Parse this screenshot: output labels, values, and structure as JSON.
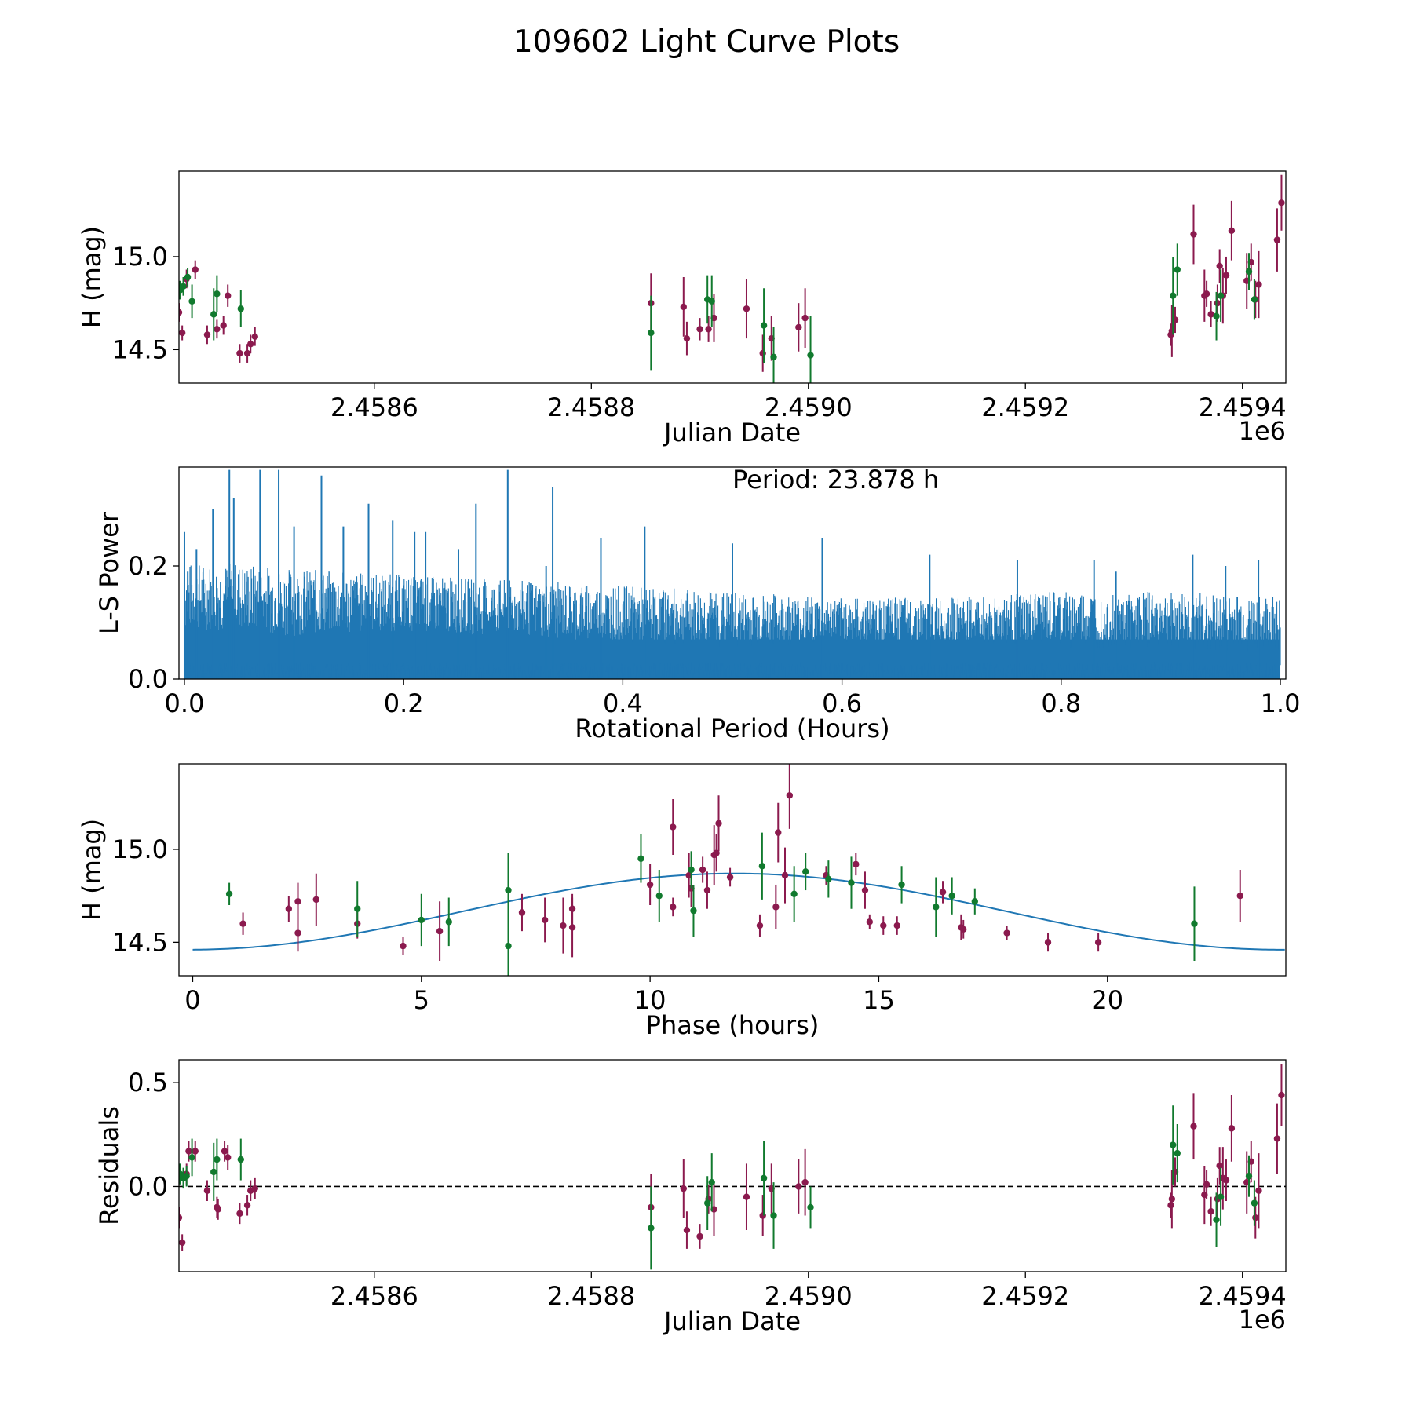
{
  "figure": {
    "title": "109602 Light Curve Plots"
  },
  "colors": {
    "red": "#8b1a4e",
    "green": "#117a2e",
    "blue": "#1f77b4"
  },
  "chart_data": [
    {
      "id": "lightcurve",
      "type": "scatter",
      "xlabel": "Julian Date",
      "ylabel": "H (mag)",
      "x_offset_label": "1e6",
      "xlim": [
        2.45842,
        2.45944
      ],
      "ylim": [
        14.32,
        15.46
      ],
      "y_inverted": true,
      "xticks": [
        2.4586,
        2.4588,
        2.459,
        2.4592,
        2.4594
      ],
      "xtick_labels": [
        "2.4586",
        "2.4588",
        "2.4590",
        "2.4592",
        "2.4594"
      ],
      "yticks": [
        14.5,
        15.0
      ],
      "ytick_labels": [
        "14.5",
        "15.0"
      ],
      "series": [
        {
          "name": "red-filter",
          "color": "red",
          "x": [
            2.45842,
            2.458423,
            2.458427,
            2.458435,
            2.458446,
            2.458455,
            2.458461,
            2.458465,
            2.458476,
            2.458483,
            2.458486,
            2.45849,
            2.458855,
            2.458885,
            2.458888,
            2.4589,
            2.458908,
            2.458913,
            2.458943,
            2.458958,
            2.458966,
            2.458991,
            2.458997,
            2.459334,
            2.459335,
            2.459338,
            2.459355,
            2.459365,
            2.459367,
            2.459371,
            2.459377,
            2.459379,
            2.459382,
            2.459385,
            2.45939,
            2.459404,
            2.459408,
            2.459412,
            2.459415,
            2.459432,
            2.459436,
            2.459443
          ],
          "y": [
            14.7,
            14.59,
            14.88,
            14.93,
            14.58,
            14.61,
            14.63,
            14.79,
            14.48,
            14.48,
            14.53,
            14.57,
            14.75,
            14.73,
            14.56,
            14.61,
            14.61,
            14.67,
            14.72,
            14.48,
            14.56,
            14.62,
            14.67,
            14.58,
            14.6,
            14.66,
            15.12,
            14.79,
            14.8,
            14.69,
            14.75,
            14.95,
            14.79,
            14.9,
            15.14,
            14.87,
            14.97,
            14.77,
            14.85,
            15.09,
            15.29,
            14.78
          ],
          "err": [
            0.05,
            0.04,
            0.05,
            0.05,
            0.05,
            0.05,
            0.05,
            0.06,
            0.05,
            0.05,
            0.05,
            0.05,
            0.16,
            0.16,
            0.09,
            0.06,
            0.07,
            0.13,
            0.16,
            0.1,
            0.12,
            0.13,
            0.16,
            0.06,
            0.14,
            0.07,
            0.16,
            0.14,
            0.07,
            0.07,
            0.1,
            0.09,
            0.15,
            0.1,
            0.16,
            0.15,
            0.1,
            0.1,
            0.18,
            0.17,
            0.15,
            0.18
          ]
        },
        {
          "name": "green-filter",
          "color": "green",
          "x": [
            2.458421,
            2.458424,
            2.458428,
            2.458432,
            2.458452,
            2.458455,
            2.458477,
            2.458855,
            2.458907,
            2.458911,
            2.458959,
            2.458968,
            2.459002,
            2.459336,
            2.45934,
            2.459376,
            2.45938,
            2.459406,
            2.459411
          ],
          "y": [
            14.82,
            14.84,
            14.89,
            14.76,
            14.69,
            14.8,
            14.72,
            14.59,
            14.77,
            14.76,
            14.63,
            14.46,
            14.47,
            14.79,
            14.93,
            14.68,
            14.79,
            14.92,
            14.77
          ]
        }
      ],
      "err_green": [
        0.05,
        0.05,
        0.05,
        0.09,
        0.14,
        0.1,
        0.1,
        0.2,
        0.13,
        0.14,
        0.2,
        0.16,
        0.21,
        0.21,
        0.14,
        0.13,
        0.14,
        0.1,
        0.11
      ]
    },
    {
      "id": "periodogram",
      "type": "line",
      "xlabel": "Rotational Period (Hours)",
      "ylabel": "L-S Power",
      "annotation": "Period: 23.878 h",
      "xlim": [
        -0.005,
        1.005
      ],
      "ylim": [
        0,
        0.375
      ],
      "xticks": [
        0.0,
        0.2,
        0.4,
        0.6,
        0.8,
        1.0
      ],
      "xtick_labels": [
        "0.0",
        "0.2",
        "0.4",
        "0.6",
        "0.8",
        "1.0"
      ],
      "yticks": [
        0.0,
        0.2
      ],
      "ytick_labels": [
        "0.0",
        "0.2"
      ],
      "series": [
        {
          "name": "ls-power",
          "color": "blue",
          "envelope": {
            "x": [
              0.0,
              0.05,
              0.1,
              0.2,
              0.3,
              0.4,
              0.5,
              0.6,
              0.7,
              0.8,
              0.9,
              1.0
            ],
            "baseline": [
              0.14,
              0.14,
              0.13,
              0.13,
              0.12,
              0.11,
              0.1,
              0.1,
              0.1,
              0.1,
              0.1,
              0.09
            ],
            "amplitude": [
              0.06,
              0.06,
              0.06,
              0.05,
              0.05,
              0.05,
              0.05,
              0.04,
              0.04,
              0.05,
              0.05,
              0.05
            ]
          },
          "peaks": {
            "x": [
              0.0,
              0.003,
              0.011,
              0.026,
              0.041,
              0.045,
              0.069,
              0.086,
              0.1,
              0.125,
              0.145,
              0.168,
              0.19,
              0.21,
              0.22,
              0.25,
              0.266,
              0.295,
              0.33,
              0.336,
              0.38,
              0.42,
              0.5,
              0.582,
              0.68,
              0.76,
              0.83,
              0.85,
              0.92,
              0.95,
              0.98
            ],
            "y": [
              0.26,
              0.19,
              0.23,
              0.3,
              0.37,
              0.32,
              0.37,
              0.37,
              0.27,
              0.36,
              0.27,
              0.31,
              0.28,
              0.26,
              0.26,
              0.23,
              0.31,
              0.37,
              0.2,
              0.34,
              0.25,
              0.27,
              0.24,
              0.25,
              0.22,
              0.21,
              0.21,
              0.19,
              0.22,
              0.2,
              0.21
            ]
          }
        }
      ]
    },
    {
      "id": "phased",
      "type": "scatter",
      "xlabel": "Phase (hours)",
      "ylabel": "H (mag)",
      "xlim": [
        -0.3,
        23.9
      ],
      "ylim": [
        14.32,
        15.46
      ],
      "y_inverted": true,
      "xticks": [
        0,
        5,
        10,
        15,
        20
      ],
      "xtick_labels": [
        "0",
        "5",
        "10",
        "15",
        "20"
      ],
      "yticks": [
        14.5,
        15.0
      ],
      "ytick_labels": [
        "14.5",
        "15.0"
      ],
      "model": {
        "name": "sinusoid-fit",
        "color": "blue",
        "mean": 14.665,
        "amplitude": 0.205,
        "phase_of_max": 11.85,
        "period": 23.878
      },
      "series": [
        {
          "name": "red-filter",
          "color": "red",
          "x": [
            1.1,
            2.1,
            2.3,
            2.3,
            2.7,
            3.6,
            4.6,
            5.4,
            7.2,
            7.7,
            8.1,
            8.3,
            8.3,
            10.0,
            10.5,
            10.5,
            10.85,
            10.9,
            11.15,
            11.25,
            11.4,
            11.45,
            11.5,
            11.75,
            12.4,
            12.75,
            12.8,
            12.95,
            13.05,
            13.85,
            14.5,
            14.7,
            14.8,
            15.1,
            15.4,
            16.4,
            16.8,
            16.85,
            17.8,
            18.7,
            19.8,
            22.9
          ],
          "y": [
            14.6,
            14.68,
            14.55,
            14.72,
            14.73,
            14.6,
            14.48,
            14.56,
            14.66,
            14.62,
            14.59,
            14.58,
            14.68,
            14.81,
            14.69,
            15.12,
            14.86,
            14.79,
            14.89,
            14.78,
            14.97,
            14.98,
            15.14,
            14.85,
            14.59,
            14.69,
            15.09,
            14.86,
            15.29,
            14.86,
            14.92,
            14.78,
            14.61,
            14.59,
            14.59,
            14.77,
            14.58,
            14.57,
            14.55,
            14.5,
            14.5,
            14.75
          ],
          "err": [
            0.06,
            0.07,
            0.1,
            0.1,
            0.14,
            0.08,
            0.05,
            0.16,
            0.1,
            0.12,
            0.15,
            0.16,
            0.08,
            0.11,
            0.05,
            0.15,
            0.12,
            0.1,
            0.07,
            0.1,
            0.16,
            0.1,
            0.15,
            0.05,
            0.06,
            0.12,
            0.16,
            0.15,
            0.18,
            0.05,
            0.06,
            0.1,
            0.04,
            0.05,
            0.05,
            0.06,
            0.07,
            0.05,
            0.04,
            0.05,
            0.05,
            0.14
          ]
        },
        {
          "name": "green-filter",
          "color": "green",
          "x": [
            0.8,
            3.6,
            5.0,
            5.6,
            6.9,
            6.9,
            9.8,
            10.2,
            10.9,
            10.95,
            12.45,
            13.15,
            13.4,
            13.9,
            14.4,
            15.5,
            16.25,
            16.6,
            17.1,
            21.9
          ],
          "y": [
            14.76,
            14.68,
            14.62,
            14.61,
            14.78,
            14.48,
            14.95,
            14.75,
            14.89,
            14.67,
            14.91,
            14.76,
            14.88,
            14.84,
            14.82,
            14.81,
            14.69,
            14.75,
            14.72,
            14.6
          ]
        }
      ],
      "err_green": [
        0.06,
        0.15,
        0.14,
        0.13,
        0.2,
        0.21,
        0.13,
        0.14,
        0.1,
        0.14,
        0.18,
        0.15,
        0.1,
        0.1,
        0.14,
        0.1,
        0.16,
        0.1,
        0.07,
        0.2
      ]
    },
    {
      "id": "residuals",
      "type": "scatter",
      "xlabel": "Julian Date",
      "ylabel": "Residuals",
      "x_offset_label": "1e6",
      "xlim": [
        2.45842,
        2.45944
      ],
      "ylim": [
        -0.41,
        0.61
      ],
      "xticks": [
        2.4586,
        2.4588,
        2.459,
        2.4592,
        2.4594
      ],
      "xtick_labels": [
        "2.4586",
        "2.4588",
        "2.4590",
        "2.4592",
        "2.4594"
      ],
      "yticks": [
        0.0,
        0.5
      ],
      "ytick_labels": [
        "0.0",
        "0.5"
      ],
      "zero_line": 0.0,
      "series": [
        {
          "name": "red-filter",
          "color": "red",
          "x": [
            2.45842,
            2.458423,
            2.458427,
            2.458429,
            2.458435,
            2.458446,
            2.458455,
            2.458456,
            2.458462,
            2.458465,
            2.458476,
            2.458483,
            2.458486,
            2.45849,
            2.458855,
            2.458885,
            2.458888,
            2.4589,
            2.458908,
            2.458913,
            2.458943,
            2.458958,
            2.458966,
            2.458991,
            2.458997,
            2.459334,
            2.459335,
            2.459338,
            2.459355,
            2.459365,
            2.459367,
            2.459371,
            2.459377,
            2.459379,
            2.459382,
            2.459385,
            2.45939,
            2.459404,
            2.459408,
            2.459412,
            2.459415,
            2.459432,
            2.459436,
            2.459443
          ],
          "y": [
            -0.15,
            -0.27,
            0.06,
            0.17,
            0.17,
            -0.02,
            -0.1,
            -0.11,
            0.17,
            0.14,
            -0.13,
            -0.09,
            -0.02,
            -0.01,
            -0.1,
            -0.01,
            -0.21,
            -0.24,
            -0.06,
            -0.11,
            -0.05,
            -0.14,
            -0.01,
            0.0,
            0.02,
            -0.09,
            -0.06,
            0.07,
            0.29,
            -0.04,
            0.01,
            -0.12,
            -0.06,
            0.1,
            0.04,
            0.03,
            0.28,
            0.02,
            0.12,
            -0.15,
            -0.02,
            0.23,
            0.44,
            0.04
          ],
          "err": [
            0.05,
            0.04,
            0.05,
            0.05,
            0.05,
            0.05,
            0.05,
            0.05,
            0.05,
            0.06,
            0.05,
            0.05,
            0.05,
            0.05,
            0.16,
            0.14,
            0.09,
            0.06,
            0.07,
            0.13,
            0.16,
            0.1,
            0.12,
            0.13,
            0.16,
            0.06,
            0.14,
            0.07,
            0.16,
            0.14,
            0.07,
            0.07,
            0.1,
            0.09,
            0.15,
            0.1,
            0.16,
            0.15,
            0.1,
            0.1,
            0.18,
            0.17,
            0.15,
            0.15
          ]
        },
        {
          "name": "green-filter",
          "color": "green",
          "x": [
            2.458421,
            2.458424,
            2.458427,
            2.458432,
            2.458452,
            2.458455,
            2.458477,
            2.458855,
            2.458907,
            2.458911,
            2.458959,
            2.458968,
            2.459002,
            2.459336,
            2.45934,
            2.459376,
            2.45938,
            2.459406,
            2.459411
          ],
          "y": [
            0.06,
            0.04,
            0.05,
            0.14,
            0.07,
            0.13,
            0.13,
            -0.2,
            -0.08,
            0.02,
            0.04,
            -0.14,
            -0.1,
            0.2,
            0.16,
            -0.16,
            -0.05,
            0.05,
            -0.08
          ]
        }
      ],
      "err_green": [
        0.05,
        0.05,
        0.05,
        0.09,
        0.14,
        0.1,
        0.1,
        0.2,
        0.13,
        0.14,
        0.18,
        0.16,
        0.1,
        0.19,
        0.14,
        0.13,
        0.14,
        0.1,
        0.11
      ]
    }
  ]
}
